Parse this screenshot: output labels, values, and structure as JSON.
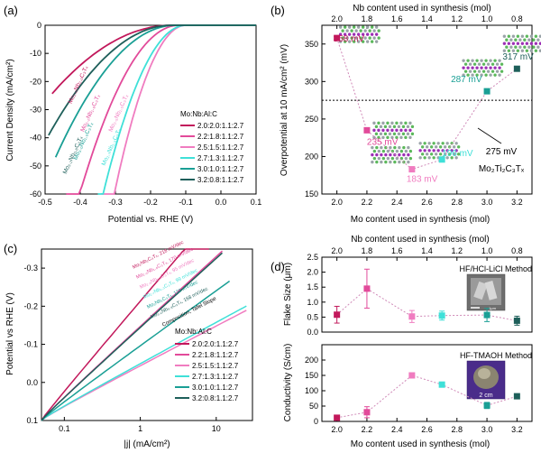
{
  "chart_data": [
    {
      "panel": "(a)",
      "type": "line",
      "xlabel": "Potential vs. RHE (V)",
      "ylabel": "Current Density (mA/cm²)",
      "xlim": [
        -0.5,
        0.1
      ],
      "ylim": [
        -60,
        0
      ],
      "xticks": [
        "-0.5",
        "-0.4",
        "-0.3",
        "-0.2",
        "-0.1",
        "0.0",
        "0.1"
      ],
      "yticks": [
        "0",
        "-10",
        "-20",
        "-30",
        "-40",
        "-50",
        "-60"
      ],
      "legend_title": "Mo:Nb:Al:C",
      "series": [
        {
          "name": "2.0:2.0:1.1:2.7",
          "color": "#c2185b",
          "onset": -0.14,
          "E10": -0.358,
          "x_end": -0.48,
          "label": "Mo₂.₀Nb₂.₀C₃Tₓ",
          "label_x": -0.425,
          "label_y": -28
        },
        {
          "name": "2.2:1.8:1.1:2.7",
          "color": "#e24a9a",
          "onset": -0.12,
          "E10": -0.235,
          "x_end": -0.44,
          "label": "Mo₂.₂Nb₁.₈C₃Tₓ",
          "label_x": -0.39,
          "label_y": -38
        },
        {
          "name": "2.5:1.5:1.1:2.7",
          "color": "#f07cc0",
          "onset": -0.1,
          "E10": -0.183,
          "x_end": -0.34,
          "label": "Mo₂.₅Nb₁.₅C₃Tₓ",
          "label_x": -0.31,
          "label_y": -38
        },
        {
          "name": "2.7:1.3:1.1:2.7",
          "color": "#3fe0d8",
          "onset": -0.1,
          "E10": -0.196,
          "x_end": -0.35,
          "label": "Mo₂.₇Nb₁.₃C₃Tₓ",
          "label_x": -0.33,
          "label_y": -50
        },
        {
          "name": "3.0:1.0:1.1:2.7",
          "color": "#1a9f95",
          "onset": -0.13,
          "E10": -0.287,
          "x_end": -0.47,
          "label": "Mo₃.₀Nb₁.₀C₃Tₓ",
          "label_x": -0.41,
          "label_y": -48
        },
        {
          "name": "3.2:0.8:1.1:2.7",
          "color": "#1e5f5a",
          "onset": -0.14,
          "E10": -0.317,
          "x_end": -0.49,
          "label": "Mo₃.₂Nb₀.₈C₃Tₓ",
          "label_x": -0.44,
          "label_y": -53
        }
      ]
    },
    {
      "panel": "(b)",
      "type": "scatter",
      "xlabel": "Mo content used in synthesis (mol)",
      "ylabel": "Overpotential at 10 mA/cm² (mV)",
      "top_axis_label": "Nb content used in synthesis (mol)",
      "xlim": [
        1.9,
        3.3
      ],
      "ylim": [
        150,
        375
      ],
      "xticks": [
        "2.0",
        "2.2",
        "2.4",
        "2.6",
        "2.8",
        "3.0",
        "3.2"
      ],
      "yticks": [
        "150",
        "200",
        "250",
        "300",
        "350"
      ],
      "top_ticks": [
        "2.0",
        "1.8",
        "1.6",
        "1.4",
        "1.2",
        "1.0",
        "0.8"
      ],
      "x": [
        2.0,
        2.2,
        2.5,
        2.7,
        3.0,
        3.2
      ],
      "values": [
        358,
        235,
        183,
        196,
        287,
        317
      ],
      "value_labels": [
        "358 mV",
        "235 mV",
        "183 mV",
        "196 mV",
        "287 mV",
        "317 mV"
      ],
      "colors": [
        "#c2185b",
        "#e24a9a",
        "#f07cc0",
        "#3fe0d8",
        "#1a9f95",
        "#1e5f5a"
      ],
      "reference": {
        "value": 275,
        "label_line1": "275 mV",
        "label_line2": "Mo₂Ti₂C₃Tₓ"
      }
    },
    {
      "panel": "(c)",
      "type": "line",
      "xlabel": "|j| (mA/cm²)",
      "ylabel": "Potential vs RHE (V)",
      "x_scale": "log",
      "xlim": [
        0.05,
        30
      ],
      "ylim": [
        0.1,
        -0.35
      ],
      "xticks": [
        "0.1",
        "1",
        "10"
      ],
      "yticks": [
        "-0.3",
        "-0.2",
        "-0.1",
        "0.0",
        "0.1"
      ],
      "legend_title": "Mo:Nb:Al:C",
      "legend_subtitle": "Composition, Tafel Slope",
      "series": [
        {
          "name": "2.0:2.0:1.1:2.7",
          "color": "#c2185b",
          "tafel": 218,
          "x_end": 8,
          "label": "Mo₂Nb₂C₃Tₓ, 218 mV/dec"
        },
        {
          "name": "2.2:1.8:1.1:2.7",
          "color": "#e24a9a",
          "tafel": 170,
          "x_end": 12,
          "label": "Mo₂.₂Nb₁.₈C₃Tₓ, 170 mV/dec"
        },
        {
          "name": "2.5:1.5:1.1:2.7",
          "color": "#f07cc0",
          "tafel": 95,
          "x_end": 25,
          "label": "Mo₂.₅Nb₁.₅C₃Tₓ, 95 mV/dec"
        },
        {
          "name": "2.7:1.3:1.1:2.7",
          "color": "#3fe0d8",
          "tafel": 99,
          "x_end": 25,
          "label": "Mo₂.₇Nb₁.₃C₃Tₓ, 99 mV/dec"
        },
        {
          "name": "3.0:1.0:1.1:2.7",
          "color": "#1a9f95",
          "tafel": 133,
          "x_end": 15,
          "label": "Mo₃Nb₁C₃Tₓ, 133 mV/dec"
        },
        {
          "name": "3.2:0.8:1.1:2.7",
          "color": "#1e5f5a",
          "tafel": 168,
          "x_end": 12,
          "label": "Mo₃.₂Nb₀.₈C₃Tₓ, 168 mV/dec"
        }
      ]
    },
    {
      "panel": "(d)",
      "type": "scatter",
      "xlabel": "Mo content used in synthesis (mol)",
      "top_axis_label": "Nb content used in synthesis (mol)",
      "xlim": [
        1.9,
        3.3
      ],
      "xticks": [
        "2.0",
        "2.2",
        "2.4",
        "2.6",
        "2.8",
        "3.0",
        "3.2"
      ],
      "top_ticks": [
        "2.0",
        "1.8",
        "1.6",
        "1.4",
        "1.2",
        "1.0",
        "0.8"
      ],
      "x": [
        2.0,
        2.2,
        2.5,
        2.7,
        3.0,
        3.2
      ],
      "colors": [
        "#c2185b",
        "#e24a9a",
        "#f07cc0",
        "#3fe0d8",
        "#1a9f95",
        "#1e5f5a"
      ],
      "upper": {
        "title": "HF/HCl-LiCl Method",
        "ylabel": "Flake Size (μm)",
        "ylim": [
          0,
          2.5
        ],
        "yticks": [
          "0.0",
          "0.5",
          "1.0",
          "1.5",
          "2.0",
          "2.5"
        ],
        "values": [
          0.58,
          1.45,
          0.52,
          0.55,
          0.57,
          0.38
        ],
        "errors": [
          0.28,
          0.65,
          0.2,
          0.15,
          0.22,
          0.15
        ],
        "scale_label": "1μm"
      },
      "lower": {
        "title": "HF-TMAOH Method",
        "ylabel": "Conductivity (S/cm)",
        "ylim": [
          0,
          250
        ],
        "yticks": [
          "0",
          "50",
          "100",
          "150",
          "200"
        ],
        "values": [
          12,
          30,
          150,
          120,
          52,
          82
        ],
        "errors": [
          6,
          18,
          8,
          8,
          10,
          6
        ],
        "scale_label": "2 cm"
      }
    }
  ]
}
